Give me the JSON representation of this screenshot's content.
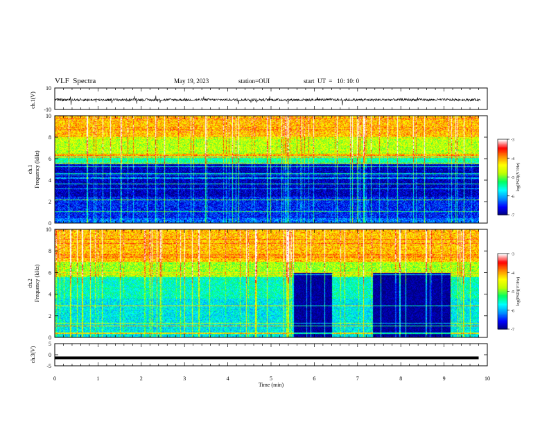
{
  "header": {
    "title": "VLF  Spectra",
    "date": "May 19, 2023",
    "station": "station=OUI",
    "start": "start  UT  =   10: 10: 0"
  },
  "colorbar": {
    "ticks": [
      "-3",
      "-4",
      "-5",
      "-6",
      "-7"
    ],
    "label": "log(PSD)(V²/Hz)",
    "colors": [
      "#00007a",
      "#0000ff",
      "#0090ff",
      "#00ffff",
      "#00ff60",
      "#c0ff00",
      "#ffff00",
      "#ff8c00",
      "#ff0000",
      "#ffffff"
    ]
  },
  "chart_data": [
    {
      "type": "line",
      "panel": "ch1-waveform",
      "ylabel": "ch.1(V)",
      "ylim": [
        -10,
        10
      ],
      "yticks": [
        "10",
        "-10"
      ],
      "x": [
        0,
        10
      ],
      "y_baseline": -1,
      "y_noise_range": [
        -3,
        1
      ]
    },
    {
      "type": "heatmap",
      "panel": "ch1-spectrogram",
      "ylabel": [
        "ch.1",
        "Frequency (kHz)"
      ],
      "ylim": [
        0,
        10
      ],
      "yticks": [
        "0",
        "2",
        "4",
        "6",
        "8",
        "10"
      ],
      "xlim": [
        0,
        9.8
      ],
      "color_range": [
        -7,
        -3
      ],
      "profile": [
        {
          "f_khz": [
            0,
            0.5
          ],
          "log_psd": -6.2
        },
        {
          "f_khz": [
            0.5,
            2.5
          ],
          "log_psd": -6.5
        },
        {
          "f_khz": [
            2.5,
            5.5
          ],
          "log_psd": -6.8
        },
        {
          "f_khz": [
            5.5,
            6.5
          ],
          "log_psd": -5.4
        },
        {
          "f_khz": [
            6.5,
            8
          ],
          "log_psd": -4.7
        },
        {
          "f_khz": [
            8,
            10
          ],
          "log_psd": -4.1
        }
      ]
    },
    {
      "type": "heatmap",
      "panel": "ch2-spectrogram",
      "ylabel": [
        "ch.2",
        "Frequency (kHz)"
      ],
      "ylim": [
        0,
        10
      ],
      "yticks": [
        "0",
        "2",
        "4",
        "6",
        "8",
        "10"
      ],
      "xlim": [
        0,
        9.8
      ],
      "color_range": [
        -7,
        -3
      ],
      "profile": [
        {
          "f_khz": [
            0,
            3.6
          ],
          "log_psd": -5.7
        },
        {
          "f_khz": [
            3.6,
            5.6
          ],
          "log_psd": -5.5
        },
        {
          "f_khz": [
            5.6,
            7
          ],
          "log_psd": -4.8
        },
        {
          "f_khz": [
            7,
            10
          ],
          "log_psd": -4.1
        }
      ],
      "quiet_intervals_min": [
        [
          5.5,
          6.4
        ],
        [
          7.35,
          9.15
        ]
      ]
    },
    {
      "type": "line",
      "panel": "ch3-waveform",
      "ylabel": "ch.3(V)",
      "ylim": [
        -5,
        5
      ],
      "yticks": [
        "5",
        "0",
        "-5"
      ],
      "x": [
        0,
        9.8
      ],
      "y": [
        -1.4,
        -1.4
      ]
    }
  ],
  "xaxis": {
    "label": "Time (min)",
    "ticks": [
      "0",
      "1",
      "2",
      "3",
      "4",
      "5",
      "6",
      "7",
      "8",
      "9",
      "10"
    ],
    "xlim": [
      0,
      10
    ]
  }
}
